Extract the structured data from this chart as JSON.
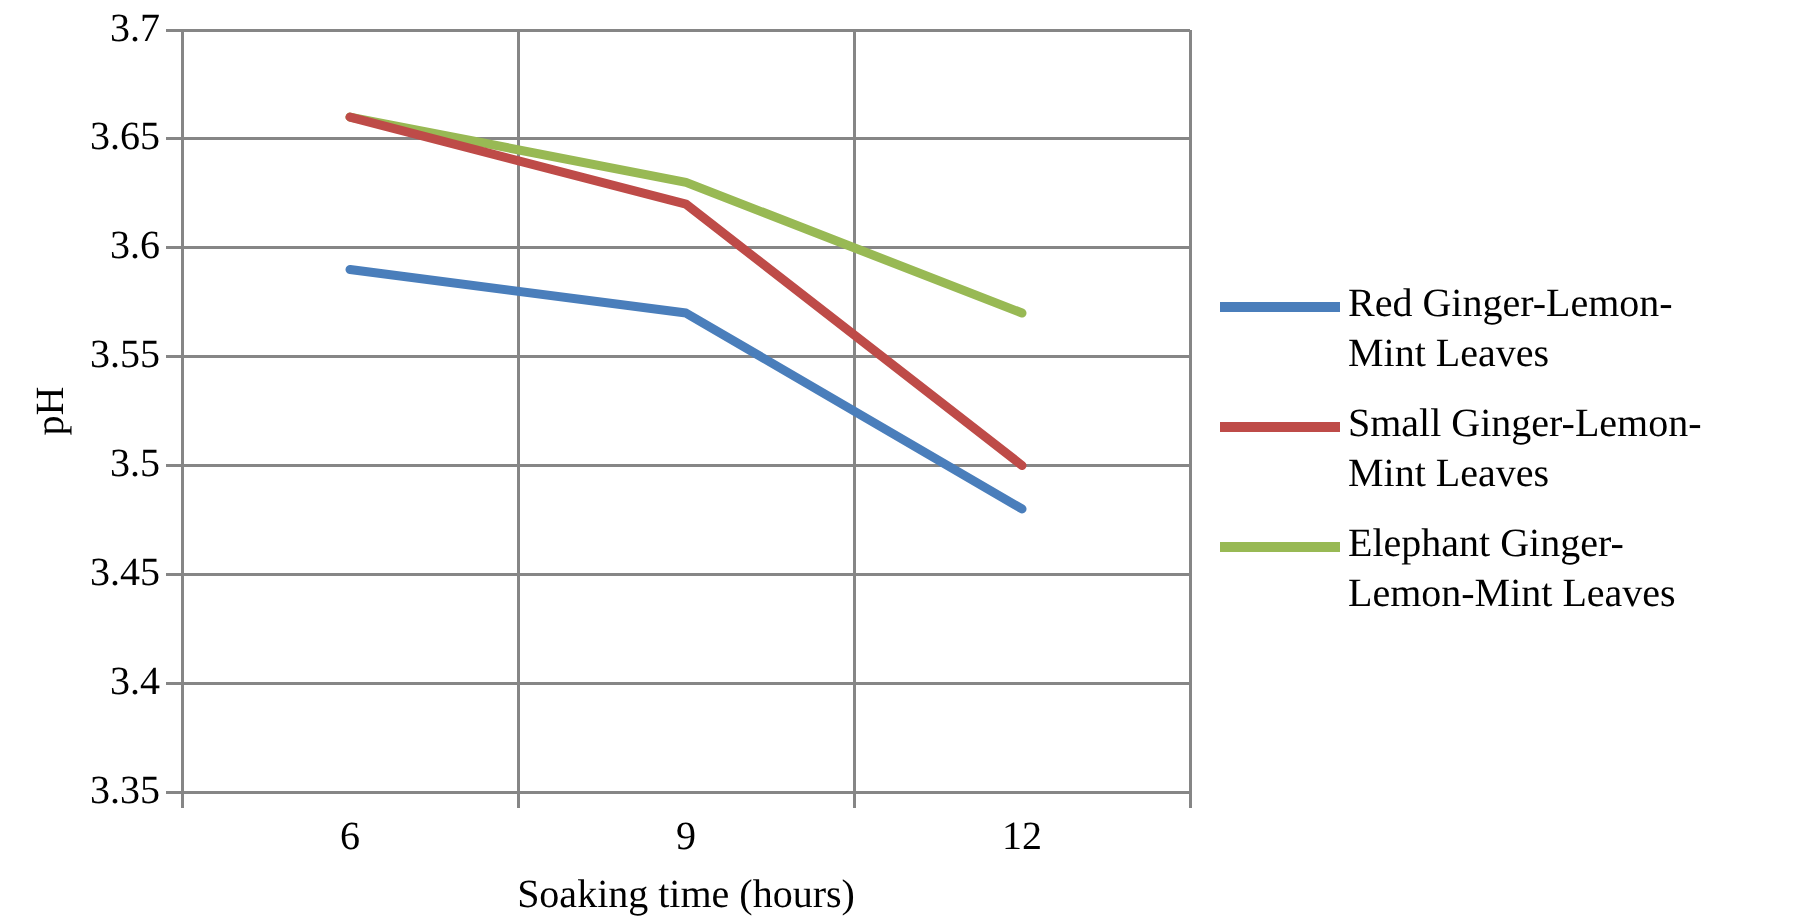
{
  "chart_data": {
    "type": "line",
    "xlabel": "Soaking time (hours)",
    "ylabel": "pH",
    "categories": [
      "6",
      "9",
      "12"
    ],
    "series": [
      {
        "name": "Red Ginger-Lemon-Mint Leaves",
        "color": "#4a7ebb",
        "values": [
          3.59,
          3.57,
          3.48
        ]
      },
      {
        "name": "Small Ginger-Lemon-Mint Leaves",
        "color": "#be4b48",
        "values": [
          3.66,
          3.62,
          3.5
        ]
      },
      {
        "name": "Elephant Ginger-Lemon-Mint Leaves",
        "color": "#98b954",
        "values": [
          3.66,
          3.63,
          3.57
        ]
      }
    ],
    "ylim": [
      3.35,
      3.7
    ],
    "yticks": [
      3.35,
      3.4,
      3.45,
      3.5,
      3.55,
      3.6,
      3.65,
      3.7
    ],
    "grid": true,
    "legend": "right",
    "marker": "none",
    "line_style": "solid"
  }
}
